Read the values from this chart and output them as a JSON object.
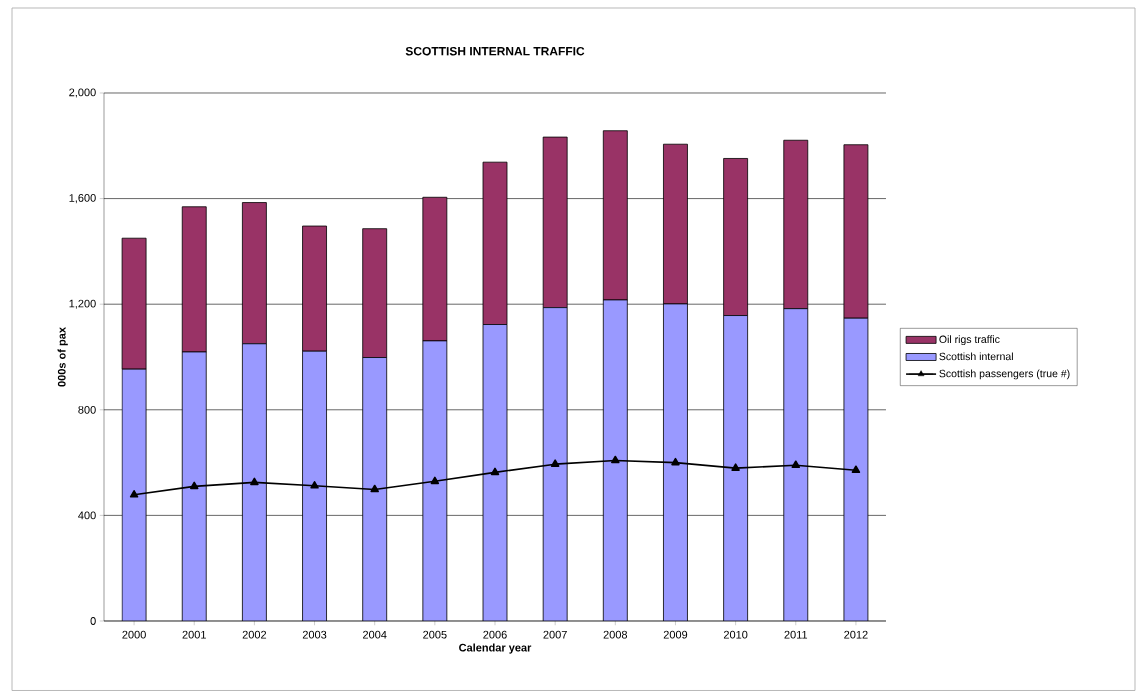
{
  "chart_data": {
    "type": "bar",
    "title": "SCOTTISH INTERNAL TRAFFIC",
    "xlabel": "Calendar year",
    "ylabel": "000s of pax",
    "categories": [
      "2000",
      "2001",
      "2002",
      "2003",
      "2004",
      "2005",
      "2006",
      "2007",
      "2008",
      "2009",
      "2010",
      "2011",
      "2012"
    ],
    "stacked": true,
    "series": [
      {
        "name": "Scottish internal",
        "color": "#9999ff",
        "values": [
          954,
          1019,
          1050,
          1022,
          998,
          1061,
          1123,
          1187,
          1216,
          1201,
          1157,
          1183,
          1147
        ]
      },
      {
        "name": "Oil rigs traffic",
        "color": "#993366",
        "values": [
          496,
          550,
          535,
          474,
          488,
          544,
          615,
          646,
          641,
          605,
          595,
          638,
          657
        ]
      },
      {
        "name": "Scottish passengers (true #)",
        "type": "line",
        "color": "#000000",
        "marker": "triangle",
        "values": [
          478,
          510,
          525,
          512,
          498,
          529,
          563,
          594,
          608,
          600,
          579,
          590,
          571
        ]
      }
    ],
    "ylim": [
      0,
      2000
    ],
    "yticks": [
      0,
      {
        "value": 400,
        "label": "400"
      },
      {
        "value": 800,
        "label": "800"
      },
      {
        "value": 1200,
        "label": "1,200"
      },
      {
        "value": 1600,
        "label": "1,600"
      },
      {
        "value": 2000,
        "label": "2,000"
      }
    ],
    "grid": "y",
    "legend": "right"
  }
}
